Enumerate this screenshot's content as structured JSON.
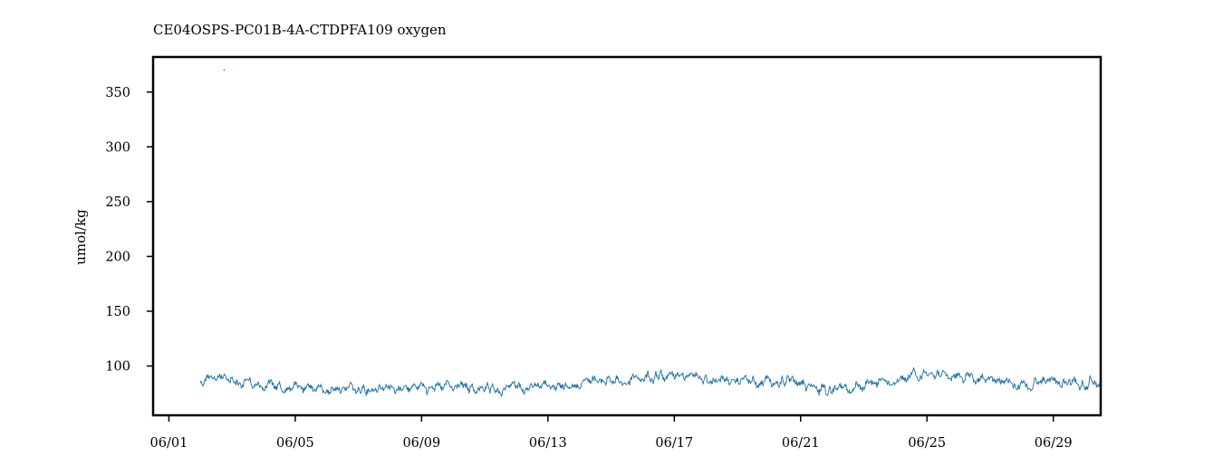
{
  "chart_data": {
    "type": "line",
    "title": "CE04OSPS-PC01B-4A-CTDPFA109 oxygen",
    "xlabel": "",
    "ylabel": "umol/kg",
    "grid": false,
    "legend": "none",
    "x_axis": {
      "unit": "date",
      "range": [
        "05-31 12:00",
        "06-30 12:00"
      ],
      "tick_labels": [
        "06/01",
        "06/05",
        "06/09",
        "06/13",
        "06/17",
        "06/21",
        "06/25",
        "06/29"
      ]
    },
    "y_axis": {
      "range": [
        55,
        382
      ],
      "tick_values": [
        100,
        150,
        200,
        250,
        300,
        350
      ],
      "tick_labels": [
        "100",
        "150",
        "200",
        "250",
        "300",
        "350"
      ]
    },
    "series": [
      {
        "color": "#1f6e9c",
        "outlier": {
          "x": "06/02 18:00",
          "y": 370
        },
        "x": [
          "06/02 00:00",
          "06/02 12:00",
          "06/03 00:00",
          "06/03 12:00",
          "06/04 00:00",
          "06/04 12:00",
          "06/05 00:00",
          "06/05 12:00",
          "06/06 00:00",
          "06/06 12:00",
          "06/07 00:00",
          "06/07 12:00",
          "06/08 00:00",
          "06/08 12:00",
          "06/09 00:00",
          "06/09 12:00",
          "06/10 00:00",
          "06/10 12:00",
          "06/11 00:00",
          "06/11 12:00",
          "06/12 00:00",
          "06/12 12:00",
          "06/13 00:00",
          "06/13 12:00",
          "06/14 00:00",
          "06/14 12:00",
          "06/15 00:00",
          "06/15 12:00",
          "06/16 00:00",
          "06/16 12:00",
          "06/17 00:00",
          "06/17 12:00",
          "06/18 00:00",
          "06/18 12:00",
          "06/19 00:00",
          "06/19 12:00",
          "06/20 00:00",
          "06/20 12:00",
          "06/21 00:00",
          "06/21 12:00",
          "06/22 00:00",
          "06/22 12:00",
          "06/23 00:00",
          "06/23 12:00",
          "06/24 00:00",
          "06/24 12:00",
          "06/25 00:00",
          "06/25 12:00",
          "06/26 00:00",
          "06/26 12:00",
          "06/27 00:00",
          "06/27 12:00",
          "06/28 00:00",
          "06/28 12:00",
          "06/29 00:00",
          "06/29 12:00",
          "06/30 00:00",
          "06/30 12:00"
        ],
        "y": [
          85,
          88,
          86,
          84,
          82,
          81,
          80,
          79,
          78,
          80,
          81,
          80,
          79,
          80,
          81,
          80,
          81,
          80,
          79,
          78,
          80,
          81,
          81,
          82,
          84,
          86,
          88,
          88,
          89,
          90,
          91,
          91,
          89,
          87,
          86,
          85,
          86,
          85,
          82,
          79,
          78,
          79,
          81,
          85,
          88,
          92,
          93,
          92,
          90,
          88,
          86,
          85,
          84,
          83,
          84,
          84,
          84,
          86
        ]
      }
    ]
  }
}
